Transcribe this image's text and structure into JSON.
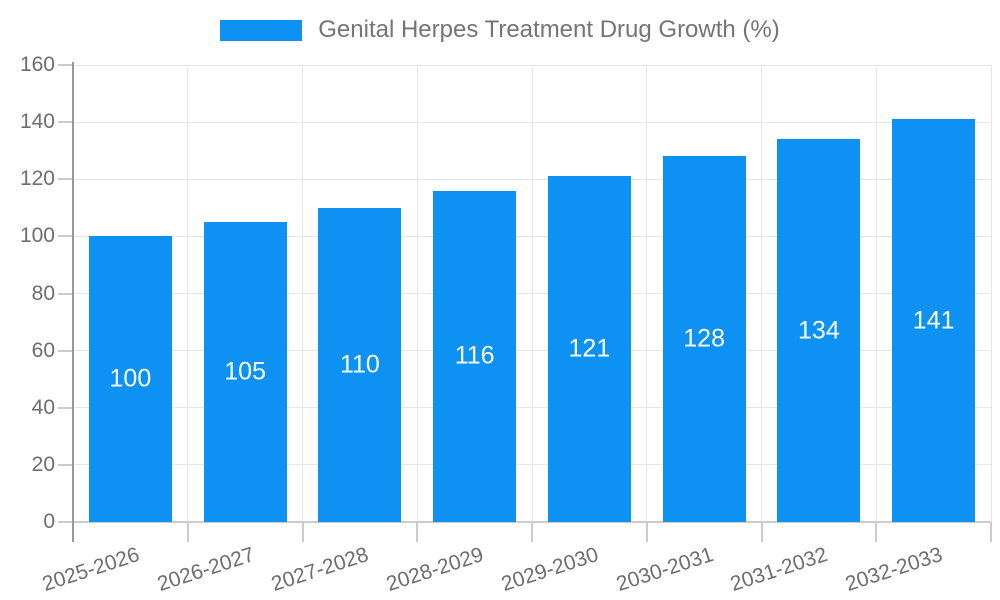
{
  "legend": {
    "label": "Genital Herpes Treatment Drug Growth (%)"
  },
  "colors": {
    "bar": "#0d92f4",
    "gridline": "#e6e6e6",
    "y_axis_line": "#999999",
    "x_axis_line": "#cccccc",
    "tick_text": "#6e6e6e",
    "legend_text": "#757575",
    "value_label_text": "#ffffff",
    "background": "#ffffff"
  },
  "chart_data": {
    "type": "bar",
    "title": "Genital Herpes Treatment Drug Growth (%)",
    "categories": [
      "2025-2026",
      "2026-2027",
      "2027-2028",
      "2028-2029",
      "2029-2030",
      "2030-2031",
      "2031-2032",
      "2032-2033"
    ],
    "values": [
      100,
      105,
      110,
      116,
      121,
      128,
      134,
      141
    ],
    "xlabel": "",
    "ylabel": "",
    "ylim": [
      0,
      160
    ],
    "yticks": [
      0,
      20,
      40,
      60,
      80,
      100,
      120,
      140,
      160
    ],
    "grid": true,
    "legend_position": "top",
    "value_labels": "inside-center",
    "x_label_rotation_deg": -18
  }
}
